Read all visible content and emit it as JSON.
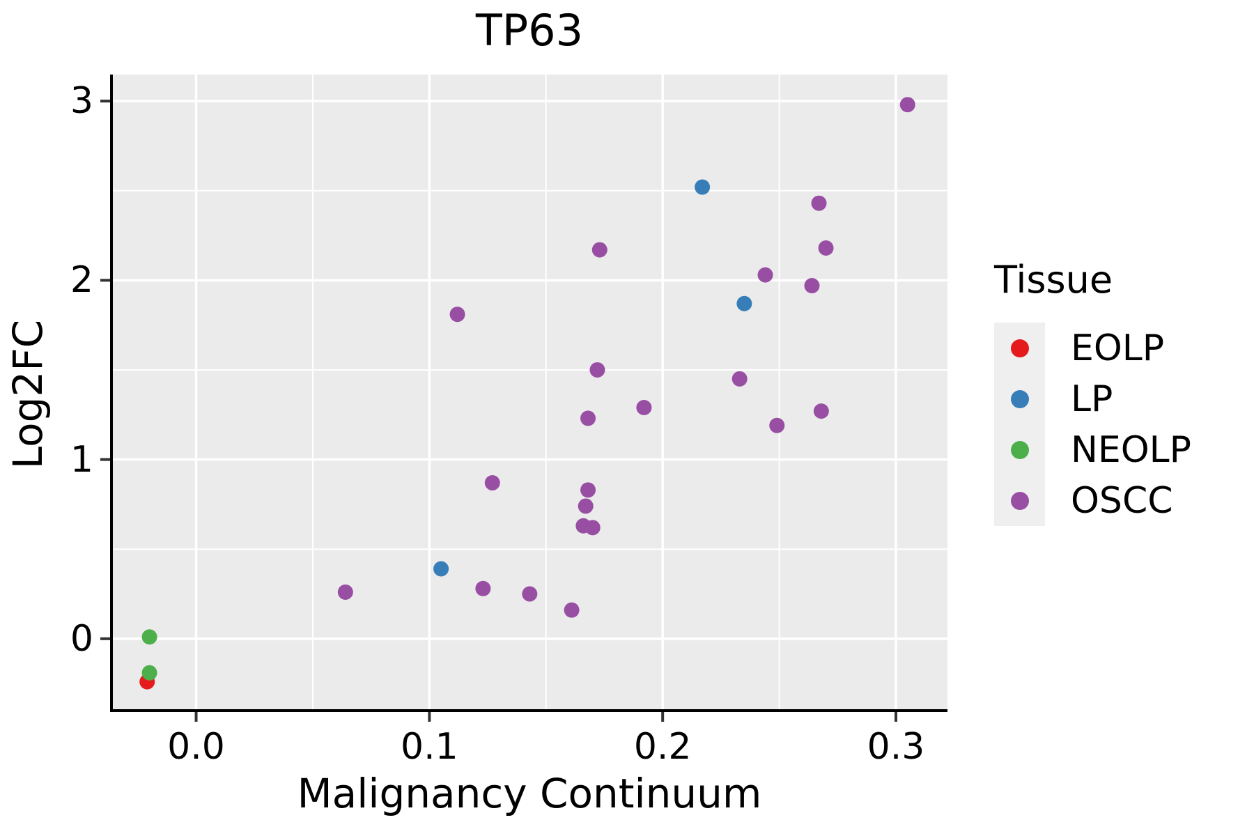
{
  "title": "TP63",
  "axes": {
    "x": {
      "label": "Malignancy Continuum",
      "tick_labels": [
        "0.0",
        "0.1",
        "0.2",
        "0.3"
      ],
      "tick_values": [
        0.0,
        0.1,
        0.2,
        0.3
      ],
      "minor_tick_values": [
        0.05,
        0.15,
        0.25
      ],
      "range": [
        -0.0363,
        0.3221
      ]
    },
    "y": {
      "label": "Log2FC",
      "tick_labels": [
        "0",
        "1",
        "2",
        "3"
      ],
      "tick_values": [
        0,
        1,
        2,
        3
      ],
      "minor_tick_values": [
        0.5,
        1.5,
        2.5
      ],
      "range": [
        -0.401,
        3.148
      ]
    }
  },
  "legend": {
    "title": "Tissue",
    "items": [
      {
        "label": "EOLP",
        "color": "#E41A1C"
      },
      {
        "label": "LP",
        "color": "#377EB8"
      },
      {
        "label": "NEOLP",
        "color": "#4DAF4A"
      },
      {
        "label": "OSCC",
        "color": "#984EA3"
      }
    ]
  },
  "colors": {
    "panel_bg": "#EBEBEB",
    "grid_major": "#FFFFFF",
    "grid_minor": "#FFFFFF",
    "axis_line": "#000000",
    "tick_mark": "#333333",
    "legend_key_bg": "#EFEFEF"
  },
  "chart_data": {
    "type": "scatter",
    "title": "TP63",
    "xlabel": "Malignancy Continuum",
    "ylabel": "Log2FC",
    "xlim": [
      -0.0363,
      0.3221
    ],
    "ylim": [
      -0.401,
      3.148
    ],
    "grid": "major+minor, white on gray panel",
    "legend_title": "Tissue",
    "legend_position": "right",
    "point_radius_px": 11,
    "series": [
      {
        "name": "EOLP",
        "color": "#E41A1C",
        "points": [
          [
            -0.021,
            -0.24
          ]
        ]
      },
      {
        "name": "LP",
        "color": "#377EB8",
        "points": [
          [
            0.105,
            0.39
          ],
          [
            0.217,
            2.52
          ],
          [
            0.235,
            1.87
          ]
        ]
      },
      {
        "name": "NEOLP",
        "color": "#4DAF4A",
        "points": [
          [
            -0.02,
            0.01
          ],
          [
            -0.02,
            -0.19
          ]
        ]
      },
      {
        "name": "OSCC",
        "color": "#984EA3",
        "points": [
          [
            0.064,
            0.26
          ],
          [
            0.112,
            1.81
          ],
          [
            0.123,
            0.28
          ],
          [
            0.127,
            0.87
          ],
          [
            0.143,
            0.25
          ],
          [
            0.161,
            0.16
          ],
          [
            0.166,
            0.63
          ],
          [
            0.17,
            0.62
          ],
          [
            0.167,
            0.74
          ],
          [
            0.168,
            0.83
          ],
          [
            0.168,
            1.23
          ],
          [
            0.172,
            1.5
          ],
          [
            0.173,
            2.17
          ],
          [
            0.192,
            1.29
          ],
          [
            0.233,
            1.45
          ],
          [
            0.244,
            2.03
          ],
          [
            0.249,
            1.19
          ],
          [
            0.264,
            1.97
          ],
          [
            0.267,
            2.43
          ],
          [
            0.268,
            1.27
          ],
          [
            0.27,
            2.18
          ],
          [
            0.305,
            2.98
          ]
        ]
      }
    ]
  }
}
